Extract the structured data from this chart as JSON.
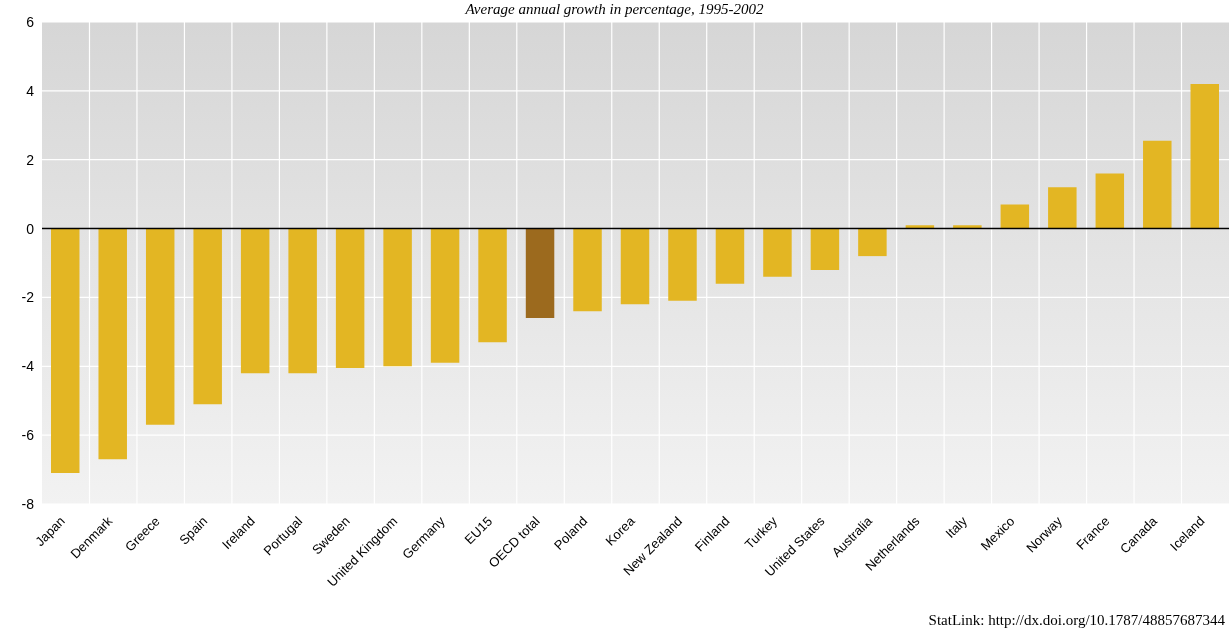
{
  "chart_data": {
    "type": "bar",
    "subtitle": "Average annual growth in percentage, 1995-2002",
    "categories": [
      "Japan",
      "Denmark",
      "Greece",
      "Spain",
      "Ireland",
      "Portugal",
      "Sweden",
      "United Kingdom",
      "Germany",
      "EU15",
      "OECD total",
      "Poland",
      "Korea",
      "New Zealand",
      "Finland",
      "Turkey",
      "United States",
      "Australia",
      "Netherlands",
      "Italy",
      "Mexico",
      "Norway",
      "France",
      "Canada",
      "Iceland"
    ],
    "values": [
      -7.1,
      -6.7,
      -5.7,
      -5.1,
      -4.2,
      -4.2,
      -4.05,
      -4.0,
      -3.9,
      -3.3,
      -2.6,
      -2.4,
      -2.2,
      -2.1,
      -1.6,
      -1.4,
      -1.2,
      -0.8,
      0.1,
      0.1,
      0.7,
      1.2,
      1.6,
      2.55,
      4.2
    ],
    "colors": [
      "#e3b623",
      "#e3b623",
      "#e3b623",
      "#e3b623",
      "#e3b623",
      "#e3b623",
      "#e3b623",
      "#e3b623",
      "#e3b623",
      "#e3b623",
      "#9c6a1e",
      "#e3b623",
      "#e3b623",
      "#e3b623",
      "#e3b623",
      "#e3b623",
      "#e3b623",
      "#e3b623",
      "#e3b623",
      "#e3b623",
      "#e3b623",
      "#e3b623",
      "#e3b623",
      "#e3b623",
      "#e3b623"
    ],
    "ylim": [
      -8,
      6
    ],
    "yticks": [
      -8,
      -6,
      -4,
      -2,
      0,
      2,
      4,
      6
    ],
    "grid": true,
    "ref_lines": [
      {
        "axis": "y",
        "value": 0,
        "color": "#000000"
      }
    ],
    "annotations": [
      "StatLink: http://dx.doi.org/10.1787/48857687344"
    ]
  }
}
